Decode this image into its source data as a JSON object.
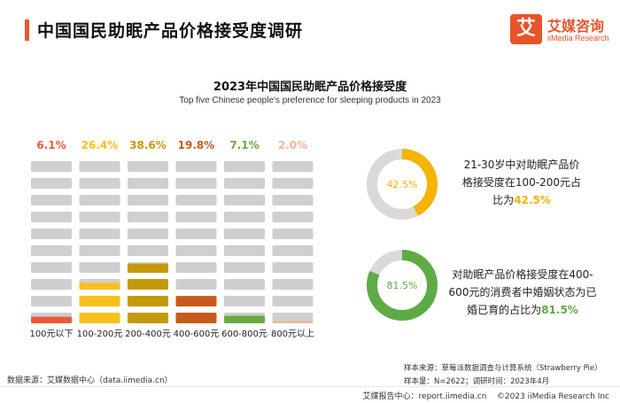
{
  "header": {
    "title": "中国国民助眠产品价格接受度调研",
    "logo_mark": "艾",
    "logo_name": "艾媒咨询",
    "logo_sub": "iiMedia Research"
  },
  "colors": {
    "accent": "#e85a2a",
    "inactive": "#cfcfcf",
    "yellow": "#f4b400",
    "green": "#5eab46"
  },
  "chart_data": {
    "type": "bar",
    "title": "2023年中国国民助眠产品价格接受度",
    "subtitle": "Top five Chinese people's preference for sleeping products in 2023",
    "categories": [
      "100元以下",
      "100-200元",
      "200-400元",
      "400-600元",
      "600-800元",
      "800元以上"
    ],
    "values": [
      6.1,
      26.4,
      38.6,
      19.8,
      7.1,
      2.0
    ],
    "value_labels": [
      "6.1%",
      "26.4%",
      "38.6%",
      "19.8%",
      "7.1%",
      "2.0%"
    ],
    "colors": [
      "#f0573a",
      "#f9c01d",
      "#c39a0c",
      "#c95a1c",
      "#6aab3f",
      "#f0b896"
    ],
    "ylim": [
      0,
      100
    ],
    "unit": "%"
  },
  "donuts": [
    {
      "value": 42.5,
      "label": "42.5%",
      "color": "#f4b400",
      "text_line1": "21-30岁中对助眠产品价",
      "text_line2": "格接受度在100-200元占",
      "text_line3_prefix": "比为",
      "text_line3_value": "42.5%"
    },
    {
      "value": 81.5,
      "label": "81.5%",
      "color": "#5eab46",
      "text_line1": "对助眠产品价格接受度在400-",
      "text_line2": "600元的消费者中婚姻状态为已",
      "text_line3_prefix": "婚已育的占比为",
      "text_line3_value": "81.5%"
    }
  ],
  "sources": {
    "left": "数据来源：艾媒数据中心（data.iimedia.cn）",
    "right_line1": "样本来源：草莓派数据调查与计算系统（Strawberry Pie）",
    "right_line2": "样本量：N=2622；调研时间：2023年4月"
  },
  "footer": {
    "report": "艾媒报告中心：report.iimedia.cn",
    "copyright": "©2023  iiMedia Research  Inc"
  }
}
